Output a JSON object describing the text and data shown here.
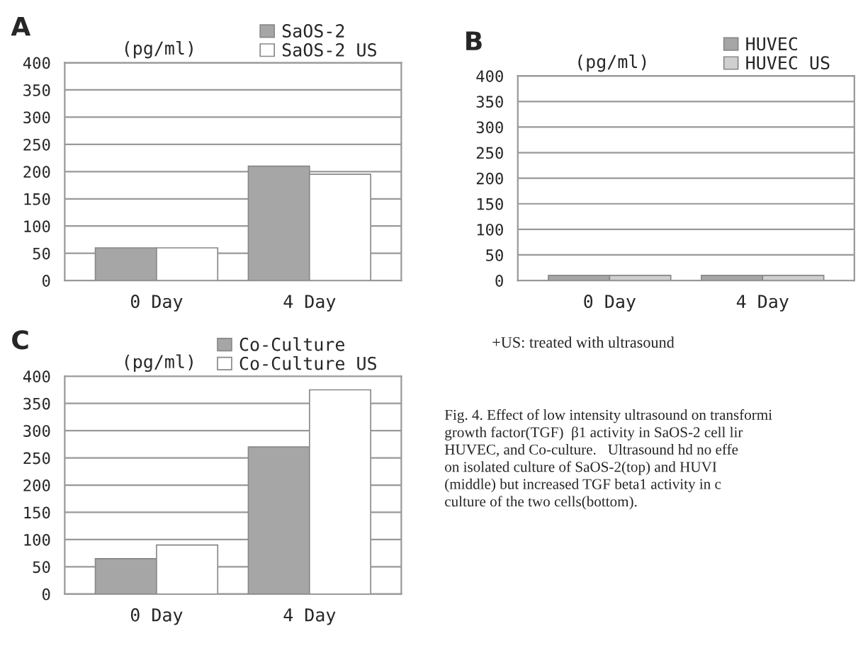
{
  "chart_data": [
    {
      "type": "bar",
      "title": "A",
      "ylabel": "(pg/ml)",
      "categories": [
        "0 Day",
        "4 Day"
      ],
      "series": [
        {
          "name": "SaOS-2",
          "color": "#a6a6a6",
          "values": [
            60,
            210
          ]
        },
        {
          "name": "SaOS-2 US",
          "color": "#ffffff",
          "values": [
            60,
            195
          ]
        }
      ],
      "ylim": [
        0,
        400
      ],
      "yticks": [
        0,
        50,
        100,
        150,
        200,
        250,
        300,
        350,
        400
      ],
      "grid": "y",
      "legend": "top"
    },
    {
      "type": "bar",
      "title": "B",
      "ylabel": "(pg/ml)",
      "categories": [
        "0 Day",
        "4 Day"
      ],
      "series": [
        {
          "name": "HUVEC",
          "color": "#a6a6a6",
          "values": [
            10,
            10
          ]
        },
        {
          "name": "HUVEC US",
          "color": "#cfcfcf",
          "values": [
            10,
            10
          ]
        }
      ],
      "ylim": [
        0,
        400
      ],
      "yticks": [
        0,
        50,
        100,
        150,
        200,
        250,
        300,
        350,
        400
      ],
      "grid": "y",
      "legend": "top",
      "annotations": [
        "+US: treated with ultrasound"
      ]
    },
    {
      "type": "bar",
      "title": "C",
      "ylabel": "(pg/ml)",
      "categories": [
        "0 Day",
        "4 Day"
      ],
      "series": [
        {
          "name": "Co-Culture",
          "color": "#a6a6a6",
          "values": [
            65,
            270
          ]
        },
        {
          "name": "Co-Culture US",
          "color": "#ffffff",
          "values": [
            90,
            375
          ]
        }
      ],
      "ylim": [
        0,
        400
      ],
      "yticks": [
        0,
        50,
        100,
        150,
        200,
        250,
        300,
        350,
        400
      ],
      "grid": "y",
      "legend": "top",
      "annotations": [
        "Fig. 4. Effect of low intensity ultrasound on transformi\ngrowth factor(TGF)  β1 activity in SaOS-2 cell lir\nHUVEC, and Co-culture.   Ultrasound hd no effe\non isolated culture of SaOS-2(top) and HUVI\n(middle) but increased TGF beta1 activity in c\nculture of the two cells(bottom)."
      ]
    }
  ]
}
